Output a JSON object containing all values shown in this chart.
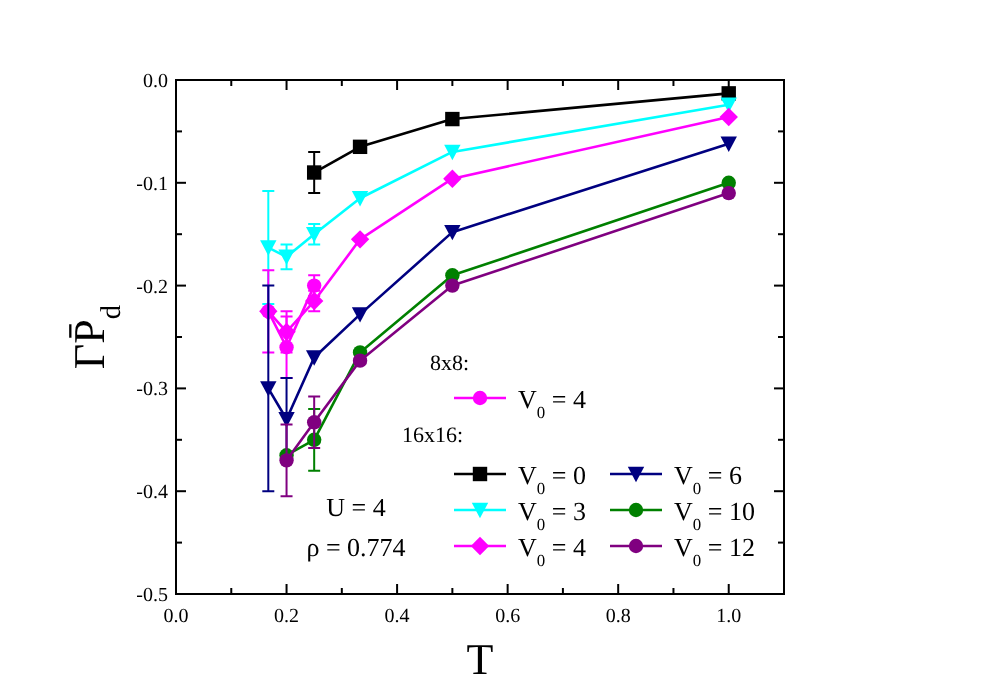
{
  "chart_data": {
    "type": "line",
    "xlabel": "T",
    "ylabel": "ΓP̄$_{d}$",
    "xlim": [
      0,
      1.1
    ],
    "ylim": [
      -0.5,
      0
    ],
    "xticks": [
      {
        "value": 0,
        "label": "0.0"
      },
      {
        "value": 0.1,
        "label": null
      },
      {
        "value": 0.2,
        "label": "0.2"
      },
      {
        "value": 0.3,
        "label": null
      },
      {
        "value": 0.4,
        "label": "0.4"
      },
      {
        "value": 0.5,
        "label": null
      },
      {
        "value": 0.6,
        "label": "0.6"
      },
      {
        "value": 0.7,
        "label": null
      },
      {
        "value": 0.8,
        "label": "0.8"
      },
      {
        "value": 0.9,
        "label": null
      },
      {
        "value": 1,
        "label": "1.0"
      }
    ],
    "yticks": [
      {
        "value": -0.5,
        "label": "-0.5"
      },
      {
        "value": -0.45,
        "label": null
      },
      {
        "value": -0.4,
        "label": "-0.4"
      },
      {
        "value": -0.35,
        "label": null
      },
      {
        "value": -0.3,
        "label": "-0.3"
      },
      {
        "value": -0.25,
        "label": null
      },
      {
        "value": -0.2,
        "label": "-0.2"
      },
      {
        "value": -0.15,
        "label": null
      },
      {
        "value": -0.1,
        "label": "-0.1"
      },
      {
        "value": -0.05,
        "label": null
      },
      {
        "value": 0,
        "label": "0.0"
      }
    ],
    "legend": "bottom right",
    "grid": false,
    "annotations": [
      "8x8:",
      "16x16:",
      "U = 4",
      "ρ = 0.774"
    ],
    "series": [
      {
        "name": "V$_{0}$ = 4",
        "color": "#ff00ff",
        "marker": "circle",
        "x": [
          0.167,
          0.2,
          0.25
        ],
        "values": [
          -0.225,
          -0.26,
          -0.2
        ],
        "errors": [
          null,
          0.03,
          0.01
        ]
      },
      {
        "name": "V$_{0}$ = 0",
        "color": "#000000",
        "marker": "square",
        "x": [
          0.25,
          0.333,
          0.5,
          1
        ],
        "values": [
          -0.09,
          -0.065,
          -0.038,
          -0.013
        ],
        "errors": [
          0.02,
          null,
          null,
          null
        ]
      },
      {
        "name": "V$_{0}$ = 3",
        "color": "#00ffff",
        "marker": "triangle",
        "x": [
          0.167,
          0.2,
          0.25,
          0.333,
          0.5,
          1
        ],
        "values": [
          -0.163,
          -0.172,
          -0.15,
          -0.115,
          -0.07,
          -0.024
        ],
        "errors": [
          0.055,
          0.012,
          0.01,
          null,
          null,
          null
        ]
      },
      {
        "name": "V$_{0}$ = 4",
        "color": "#ff00ff",
        "marker": "diamond",
        "x": [
          0.167,
          0.2,
          0.25,
          0.333,
          0.5,
          1
        ],
        "values": [
          -0.225,
          -0.245,
          -0.215,
          -0.155,
          -0.096,
          -0.036
        ],
        "errors": [
          0.04,
          0.02,
          0.01,
          null,
          null,
          null
        ]
      },
      {
        "name": "V$_{0}$ = 6",
        "color": "#000080",
        "marker": "triangle",
        "x": [
          0.167,
          0.2,
          0.25,
          0.333,
          0.5,
          1
        ],
        "values": [
          -0.3,
          -0.33,
          -0.27,
          -0.228,
          -0.148,
          -0.062
        ],
        "errors": [
          0.1,
          0.04,
          null,
          null,
          null,
          null
        ]
      },
      {
        "name": "V$_{0}$ = 10",
        "color": "#008000",
        "marker": "circle",
        "x": [
          0.2,
          0.25,
          0.333,
          0.5,
          1
        ],
        "values": [
          -0.365,
          -0.35,
          -0.265,
          -0.19,
          -0.1
        ],
        "errors": [
          null,
          0.03,
          null,
          null,
          null
        ]
      },
      {
        "name": "V$_{0}$ = 12",
        "color": "#800080",
        "marker": "circle",
        "x": [
          0.2,
          0.25,
          0.333,
          0.5,
          1
        ],
        "values": [
          -0.37,
          -0.333,
          -0.273,
          -0.2,
          -0.11
        ],
        "errors": [
          0.035,
          0.025,
          null,
          null,
          null
        ]
      }
    ]
  }
}
